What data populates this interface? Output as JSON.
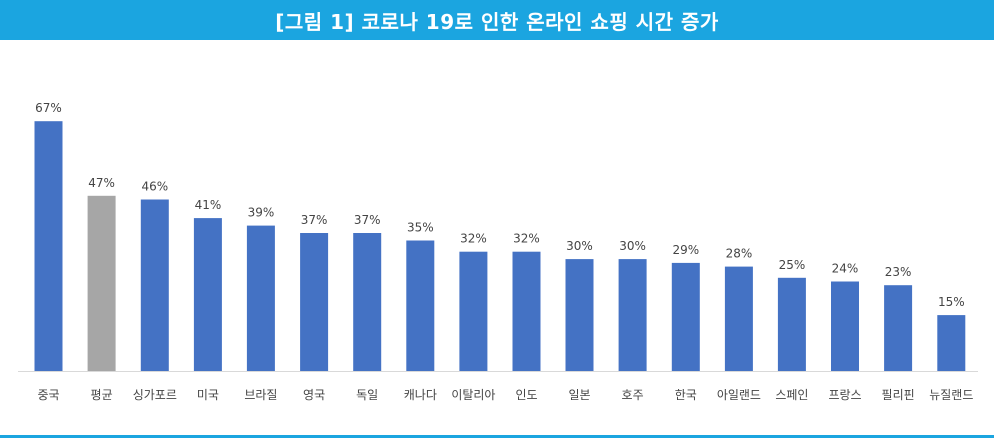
{
  "header": {
    "title": "[그림 1] 코로나 19로 인한 온라인 쇼핑 시간 증가"
  },
  "colors": {
    "title_bg": "#1ba5e0",
    "bar": "#4472c4",
    "highlight_bar": "#a6a6a6",
    "axis": "#d9d9d9",
    "text": "#444444"
  },
  "chart_data": {
    "type": "bar",
    "title": "",
    "xlabel": "",
    "ylabel": "",
    "ylim": [
      0,
      70
    ],
    "grid": false,
    "categories": [
      "중국",
      "평균",
      "싱가포르",
      "미국",
      "브라질",
      "영국",
      "독일",
      "캐나다",
      "이탈리아",
      "인도",
      "일본",
      "호주",
      "한국",
      "아일랜드",
      "스페인",
      "프랑스",
      "필리핀",
      "뉴질랜드"
    ],
    "values": [
      67,
      47,
      46,
      41,
      39,
      37,
      37,
      35,
      32,
      32,
      30,
      30,
      29,
      28,
      25,
      24,
      23,
      15
    ],
    "value_labels": [
      "67%",
      "47%",
      "46%",
      "41%",
      "39%",
      "37%",
      "37%",
      "35%",
      "32%",
      "32%",
      "30%",
      "30%",
      "29%",
      "28%",
      "25%",
      "24%",
      "23%",
      "15%"
    ],
    "highlight_category": "평균"
  }
}
